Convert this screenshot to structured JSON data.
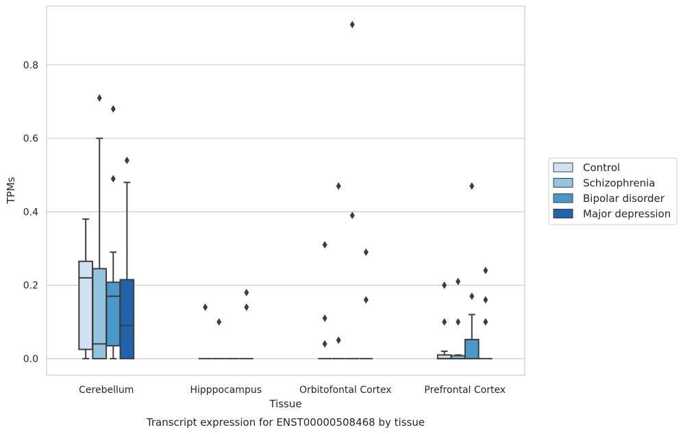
{
  "chart_data": {
    "type": "box",
    "title": "",
    "caption": "Transcript expression for ENST00000508468 by tissue",
    "xlabel": "Tissue",
    "ylabel": "TPMs",
    "ylim": [
      -0.045,
      0.96
    ],
    "yticks": [
      0.0,
      0.2,
      0.4,
      0.6,
      0.8
    ],
    "ytick_labels": [
      "0.0",
      "0.2",
      "0.4",
      "0.6",
      "0.8"
    ],
    "grid": "horizontal",
    "legend_position": "right",
    "categories": [
      "Cerebellum",
      "Hipppocampus",
      "Orbitofontal Cortex",
      "Prefrontal Cortex"
    ],
    "series": [
      {
        "name": "Control",
        "color": "#d0e1f2",
        "boxes": [
          {
            "q1": 0.025,
            "median": 0.22,
            "q3": 0.265,
            "whisker_low": 0.0,
            "whisker_high": 0.38,
            "outliers": []
          },
          {
            "q1": 0.0,
            "median": 0.0,
            "q3": 0.0,
            "whisker_low": 0.0,
            "whisker_high": 0.0,
            "outliers": [
              0.14
            ]
          },
          {
            "q1": 0.0,
            "median": 0.0,
            "q3": 0.0,
            "whisker_low": 0.0,
            "whisker_high": 0.0,
            "outliers": [
              0.04,
              0.11,
              0.31
            ]
          },
          {
            "q1": 0.0,
            "median": 0.0,
            "q3": 0.01,
            "whisker_low": 0.0,
            "whisker_high": 0.02,
            "outliers": [
              0.1,
              0.2
            ]
          }
        ]
      },
      {
        "name": "Schizophrenia",
        "color": "#94c4df",
        "boxes": [
          {
            "q1": 0.0,
            "median": 0.04,
            "q3": 0.245,
            "whisker_low": 0.0,
            "whisker_high": 0.6,
            "outliers": [
              0.71
            ]
          },
          {
            "q1": 0.0,
            "median": 0.0,
            "q3": 0.0,
            "whisker_low": 0.0,
            "whisker_high": 0.0,
            "outliers": [
              0.1
            ]
          },
          {
            "q1": 0.0,
            "median": 0.0,
            "q3": 0.0,
            "whisker_low": 0.0,
            "whisker_high": 0.0,
            "outliers": [
              0.05,
              0.47
            ]
          },
          {
            "q1": 0.0,
            "median": 0.0,
            "q3": 0.008,
            "whisker_low": 0.0,
            "whisker_high": 0.01,
            "outliers": [
              0.1,
              0.21
            ]
          }
        ]
      },
      {
        "name": "Bipolar disorder",
        "color": "#4a98c9",
        "boxes": [
          {
            "q1": 0.035,
            "median": 0.17,
            "q3": 0.208,
            "whisker_low": 0.0,
            "whisker_high": 0.29,
            "outliers": [
              0.49,
              0.68
            ]
          },
          {
            "q1": 0.0,
            "median": 0.0,
            "q3": 0.0,
            "whisker_low": 0.0,
            "whisker_high": 0.0,
            "outliers": []
          },
          {
            "q1": 0.0,
            "median": 0.0,
            "q3": 0.0,
            "whisker_low": 0.0,
            "whisker_high": 0.0,
            "outliers": [
              0.39,
              0.91
            ]
          },
          {
            "q1": 0.0,
            "median": 0.0,
            "q3": 0.052,
            "whisker_low": 0.0,
            "whisker_high": 0.12,
            "outliers": [
              0.17,
              0.47
            ]
          }
        ]
      },
      {
        "name": "Major depression",
        "color": "#2164ab",
        "boxes": [
          {
            "q1": 0.0,
            "median": 0.09,
            "q3": 0.215,
            "whisker_low": 0.0,
            "whisker_high": 0.48,
            "outliers": [
              0.54
            ]
          },
          {
            "q1": 0.0,
            "median": 0.0,
            "q3": 0.0,
            "whisker_low": 0.0,
            "whisker_high": 0.0,
            "outliers": [
              0.14,
              0.18
            ]
          },
          {
            "q1": 0.0,
            "median": 0.0,
            "q3": 0.0,
            "whisker_low": 0.0,
            "whisker_high": 0.0,
            "outliers": [
              0.16,
              0.29
            ]
          },
          {
            "q1": 0.0,
            "median": 0.0,
            "q3": 0.0,
            "whisker_low": 0.0,
            "whisker_high": 0.0,
            "outliers": [
              0.1,
              0.16,
              0.24
            ]
          }
        ]
      }
    ]
  }
}
